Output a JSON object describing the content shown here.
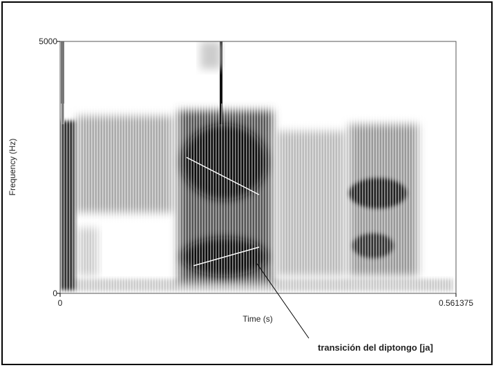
{
  "chart_data": {
    "type": "spectrogram",
    "x_label": "Time (s)",
    "y_label": "Frequency (Hz)",
    "xlim": [
      0,
      0.561375
    ],
    "ylim": [
      0,
      5000
    ],
    "xticks": [
      0,
      0.561375
    ],
    "yticks": [
      0,
      5000
    ],
    "annotation": "transición del diptongo [ja]"
  }
}
